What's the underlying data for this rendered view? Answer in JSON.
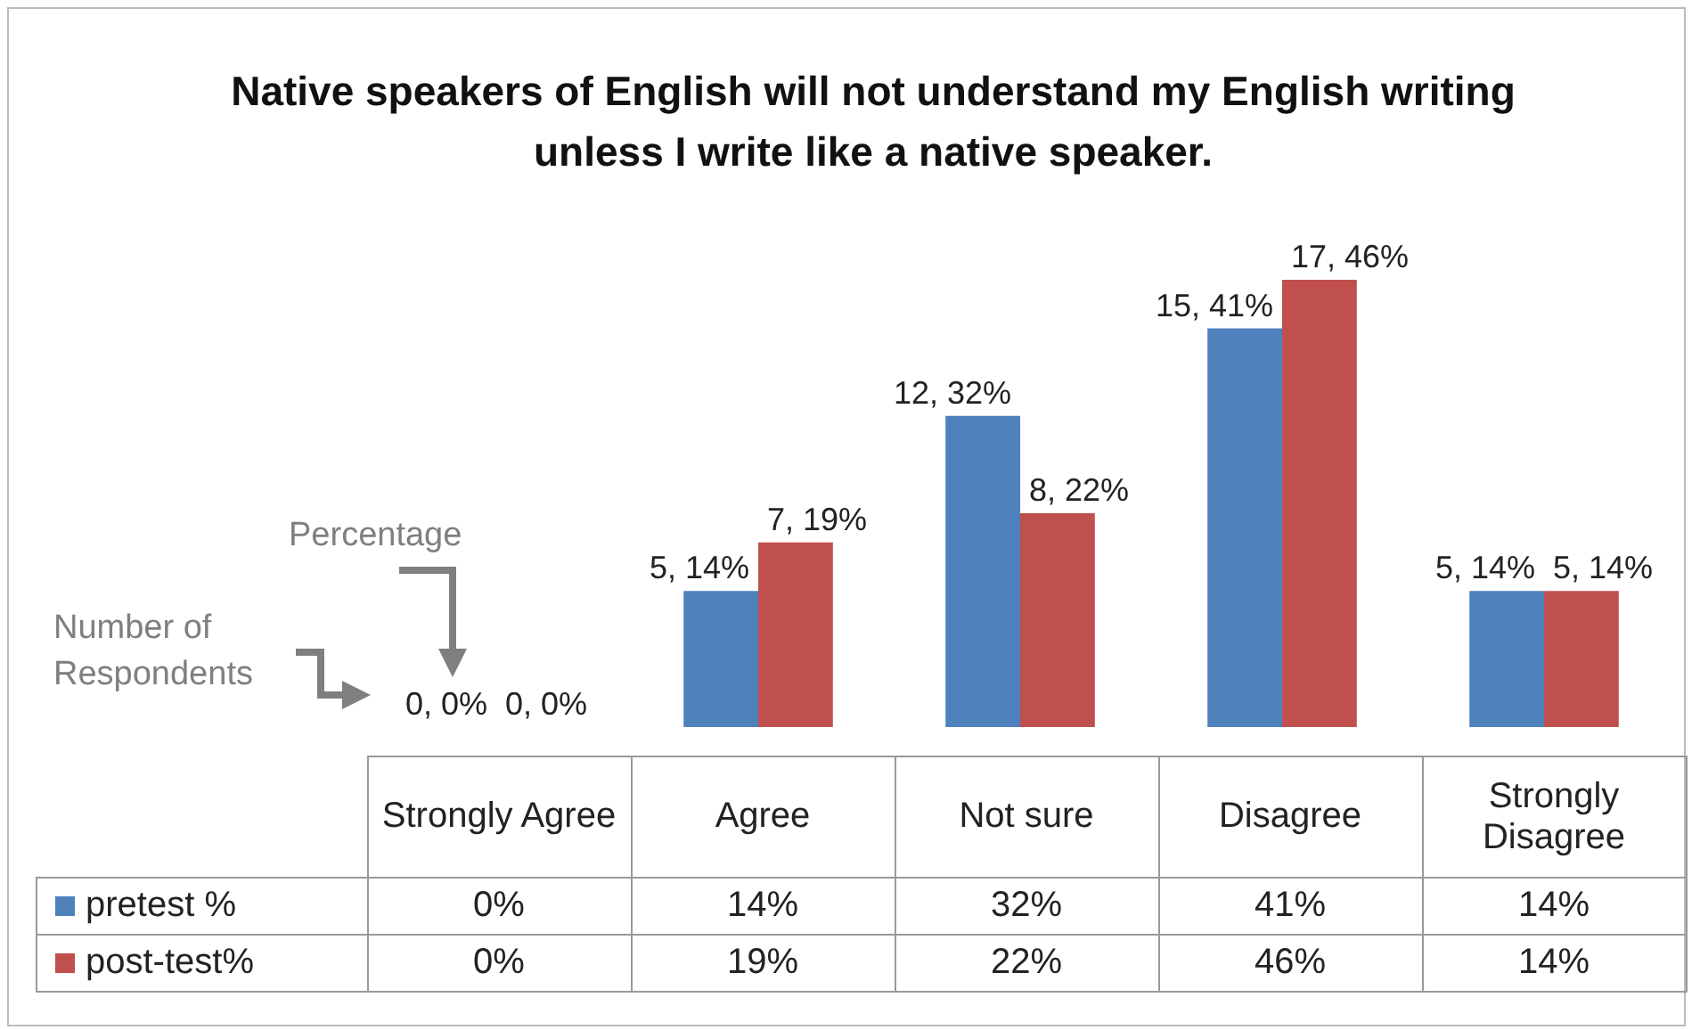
{
  "chart_data": {
    "type": "bar",
    "title": "Native speakers of English will not understand my English writing unless I write like a native speaker.",
    "categories": [
      "Strongly Agree",
      "Agree",
      "Not sure",
      "Disagree",
      "Strongly Disagree"
    ],
    "legend": "bottom",
    "series": [
      {
        "name": "pretest %",
        "color": "#4f81bd",
        "values": [
          0,
          14,
          32,
          41,
          14
        ],
        "value_labels": [
          "0%",
          "14%",
          "32%",
          "41%",
          "14%"
        ]
      },
      {
        "name": "post-test%",
        "color": "#c0504d",
        "values": [
          0,
          19,
          22,
          46,
          14
        ],
        "value_labels": [
          "0%",
          "19%",
          "22%",
          "46%",
          "14%"
        ]
      }
    ],
    "annotations": [
      "Percentage",
      "Number of Respondents",
      {
        "text": "0, 0%",
        "x": "Strongly Agree",
        "y": 0
      },
      {
        "text": "0, 0%",
        "x": "Strongly Agree",
        "y": 0
      },
      {
        "text": "5, 14%",
        "x": "Agree",
        "y": 14
      },
      {
        "text": "7, 19%",
        "x": "Agree",
        "y": 19
      },
      {
        "text": "12, 32%",
        "x": "Not sure",
        "y": 32
      },
      {
        "text": "8, 22%",
        "x": "Not sure",
        "y": 22
      },
      {
        "text": "15, 41%",
        "x": "Disagree",
        "y": 41
      },
      {
        "text": "17, 46%",
        "x": "Disagree",
        "y": 46
      },
      {
        "text": "5, 14%",
        "x": "Strongly Disagree",
        "y": 14
      },
      {
        "text": "5, 14%",
        "x": "Strongly Disagree",
        "y": 14
      }
    ]
  }
}
